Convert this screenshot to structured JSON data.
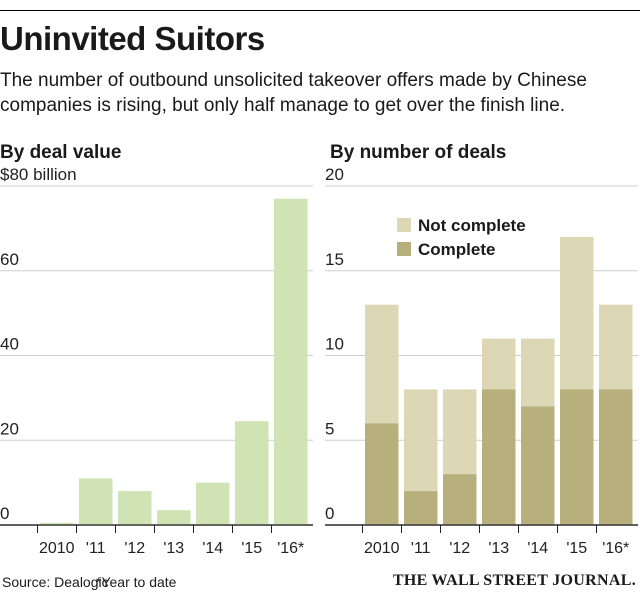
{
  "header": {
    "title": "Uninvited Suitors",
    "subtitle": "The number of outbound unsolicited takeover offers made by Chinese companies is rising, but only half manage to get over the finish line."
  },
  "footer": {
    "source": "Source: Dealogic",
    "note": "*Year to date",
    "brand": "THE WALL STREET JOURNAL."
  },
  "colors": {
    "value_bar": "#cfe3b4",
    "not_complete": "#dcd7b4",
    "complete": "#b8b07c",
    "grid": "#cfcfcf"
  },
  "chart_data": [
    {
      "type": "bar",
      "title": "By deal value",
      "unit_label": "$80 billion",
      "categories": [
        "2010",
        "'11",
        "'12",
        "'13",
        "'14",
        "'15",
        "'16*"
      ],
      "values": [
        0.5,
        11,
        8,
        3.5,
        10,
        24.5,
        77
      ],
      "ylim": [
        0,
        80
      ],
      "y_ticks": [
        "$80 billion",
        "60",
        "40",
        "20",
        "0"
      ],
      "grid": true
    },
    {
      "type": "bar",
      "stacked": true,
      "title": "By number of deals",
      "categories": [
        "2010",
        "'11",
        "'12",
        "'13",
        "'14",
        "'15",
        "'16*"
      ],
      "series": [
        {
          "name": "Complete",
          "values": [
            6,
            2,
            3,
            8,
            7,
            8,
            8
          ]
        },
        {
          "name": "Not complete",
          "values": [
            7,
            6,
            5,
            3,
            4,
            9,
            5
          ]
        }
      ],
      "ylim": [
        0,
        20
      ],
      "y_ticks": [
        "20",
        "15",
        "10",
        "5",
        "0"
      ],
      "legend": [
        "Not complete",
        "Complete"
      ],
      "legend_position": "top-left",
      "grid": true
    }
  ]
}
